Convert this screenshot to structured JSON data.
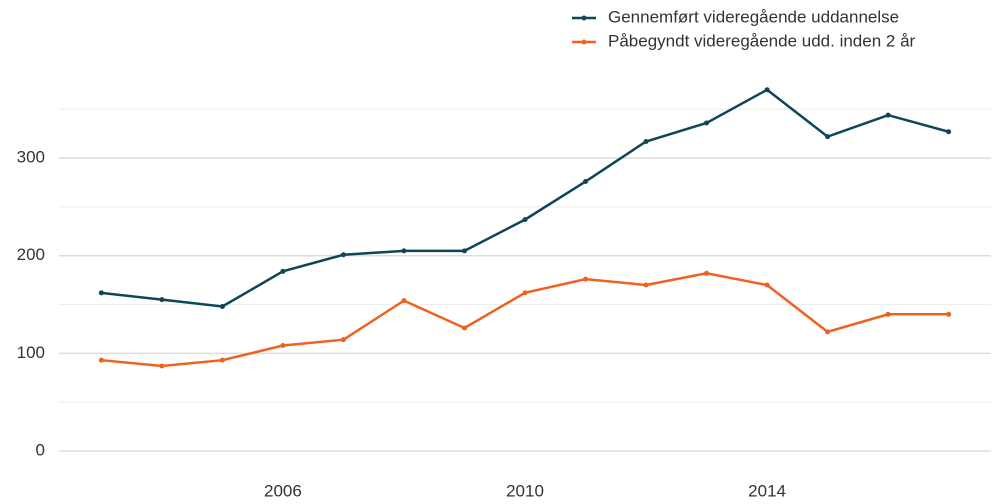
{
  "chart_data": {
    "type": "line",
    "x": [
      2003,
      2004,
      2005,
      2006,
      2007,
      2008,
      2009,
      2010,
      2011,
      2012,
      2013,
      2014,
      2015,
      2016,
      2017
    ],
    "series": [
      {
        "name": "Gennemført videregående uddannelse",
        "color": "#0f4657",
        "values": [
          162,
          155,
          148,
          184,
          201,
          205,
          205,
          237,
          276,
          317,
          336,
          370,
          322,
          344,
          327
        ]
      },
      {
        "name": "Påbegyndt videregående udd. inden 2 år",
        "color": "#f0601e",
        "values": [
          93,
          87,
          93,
          108,
          114,
          154,
          126,
          162,
          176,
          170,
          182,
          170,
          122,
          140,
          140
        ]
      }
    ],
    "xlim": [
      2002.3,
      2017.7
    ],
    "xticks": [
      2006,
      2010,
      2014
    ],
    "ylim": [
      -20,
      380
    ],
    "yticks": [
      0,
      100,
      200,
      300
    ],
    "minor_yticks": [
      50,
      150,
      250,
      350
    ],
    "grid": true,
    "legend": "top-right"
  }
}
